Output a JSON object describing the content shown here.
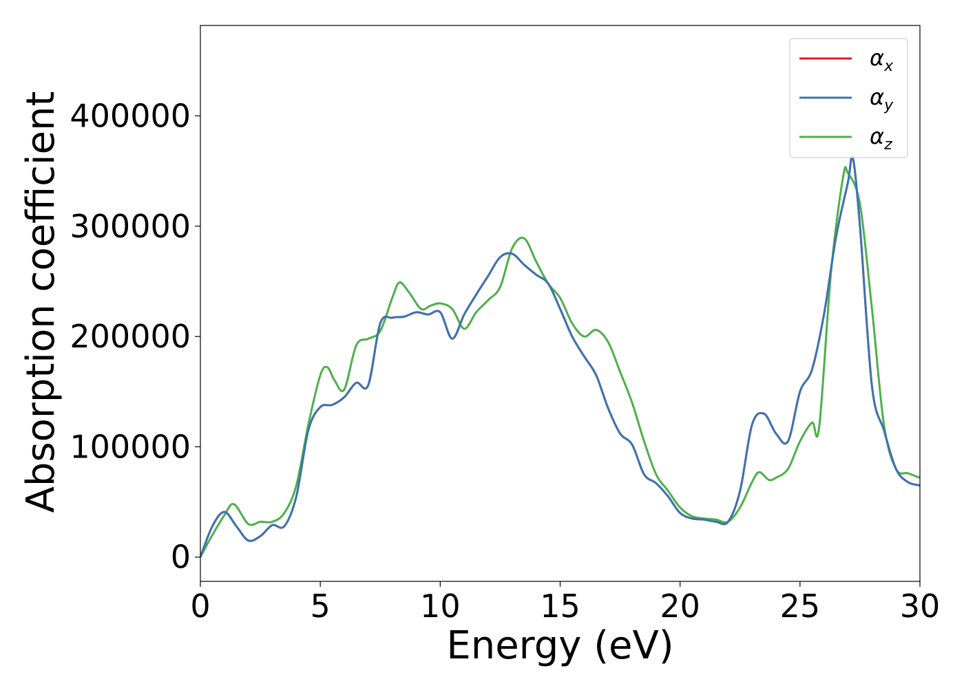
{
  "chart_data": {
    "type": "line",
    "xlabel": "Energy (eV)",
    "ylabel": "Absorption coefficient",
    "xlim": [
      0,
      30
    ],
    "ylim": [
      -22000,
      482000
    ],
    "xticks": [
      "0",
      "5",
      "10",
      "15",
      "20",
      "25",
      "30"
    ],
    "yticks": [
      "0",
      "100000",
      "200000",
      "300000",
      "400000"
    ],
    "grid": false,
    "legend": "top-right",
    "series": [
      {
        "name": "α",
        "subscript": "x",
        "color": "#e41a1c",
        "x": [
          0,
          0.5,
          1.0,
          1.5,
          2.0,
          2.5,
          3.0,
          3.5,
          4.0,
          4.5,
          5.0,
          5.5,
          6.0,
          6.5,
          7.0,
          7.5,
          8.0,
          8.5,
          9.0,
          9.5,
          10.0,
          10.5,
          11.0,
          11.5,
          12.0,
          12.5,
          13.0,
          13.5,
          14.0,
          14.5,
          15.0,
          15.5,
          16.0,
          16.5,
          17.0,
          17.5,
          18.0,
          18.5,
          19.0,
          19.5,
          20.0,
          20.5,
          21.0,
          21.5,
          22.0,
          22.5,
          23.0,
          23.5,
          24.0,
          24.5,
          25.0,
          25.5,
          26.0,
          26.5,
          27.0,
          27.2,
          27.5,
          28.0,
          28.5,
          29.0,
          29.5,
          30.0
        ],
        "y": [
          0,
          28000,
          41000,
          28000,
          15000,
          19000,
          29000,
          28000,
          55000,
          115000,
          136000,
          138000,
          145000,
          158000,
          156000,
          212000,
          217000,
          218000,
          222000,
          220000,
          222000,
          198000,
          220000,
          238000,
          255000,
          272000,
          275000,
          265000,
          256000,
          248000,
          225000,
          200000,
          182000,
          165000,
          135000,
          112000,
          102000,
          75000,
          67000,
          55000,
          40000,
          35000,
          34000,
          32000,
          32000,
          60000,
          120000,
          130000,
          112000,
          105000,
          150000,
          170000,
          220000,
          290000,
          340000,
          362000,
          300000,
          155000,
          115000,
          80000,
          68000,
          65000
        ]
      },
      {
        "name": "α",
        "subscript": "y",
        "color": "#3a74b4",
        "x": [
          0,
          0.5,
          1.0,
          1.5,
          2.0,
          2.5,
          3.0,
          3.5,
          4.0,
          4.5,
          5.0,
          5.5,
          6.0,
          6.5,
          7.0,
          7.5,
          8.0,
          8.5,
          9.0,
          9.5,
          10.0,
          10.5,
          11.0,
          11.5,
          12.0,
          12.5,
          13.0,
          13.5,
          14.0,
          14.5,
          15.0,
          15.5,
          16.0,
          16.5,
          17.0,
          17.5,
          18.0,
          18.5,
          19.0,
          19.5,
          20.0,
          20.5,
          21.0,
          21.5,
          22.0,
          22.5,
          23.0,
          23.5,
          24.0,
          24.5,
          25.0,
          25.5,
          26.0,
          26.5,
          27.0,
          27.2,
          27.5,
          28.0,
          28.5,
          29.0,
          29.5,
          30.0
        ],
        "y": [
          0,
          28000,
          41000,
          28000,
          15000,
          19000,
          29000,
          28000,
          55000,
          115000,
          136000,
          138000,
          145000,
          158000,
          156000,
          212000,
          217000,
          218000,
          222000,
          220000,
          222000,
          198000,
          220000,
          238000,
          255000,
          272000,
          275000,
          265000,
          256000,
          248000,
          225000,
          200000,
          182000,
          165000,
          135000,
          112000,
          102000,
          75000,
          67000,
          55000,
          40000,
          35000,
          34000,
          32000,
          32000,
          60000,
          120000,
          130000,
          112000,
          105000,
          150000,
          170000,
          220000,
          290000,
          340000,
          362000,
          300000,
          155000,
          115000,
          80000,
          68000,
          65000
        ]
      },
      {
        "name": "α",
        "subscript": "z",
        "color": "#4daf4a",
        "x": [
          0,
          0.5,
          1.0,
          1.4,
          2.0,
          2.5,
          3.0,
          3.5,
          4.0,
          4.5,
          5.0,
          5.3,
          5.6,
          6.0,
          6.5,
          7.0,
          7.5,
          8.0,
          8.3,
          8.7,
          9.2,
          9.6,
          10.0,
          10.5,
          11.0,
          11.5,
          12.0,
          12.5,
          13.0,
          13.5,
          14.0,
          14.5,
          15.0,
          15.5,
          16.0,
          16.5,
          17.0,
          17.5,
          18.0,
          18.5,
          19.0,
          19.5,
          20.0,
          20.5,
          21.0,
          21.5,
          22.0,
          22.5,
          23.0,
          23.3,
          23.7,
          24.0,
          24.5,
          25.0,
          25.5,
          25.8,
          26.3,
          26.8,
          27.0,
          27.5,
          28.0,
          28.5,
          29.0,
          29.5,
          30.0
        ],
        "y": [
          0,
          20000,
          38000,
          48000,
          30000,
          32000,
          32000,
          40000,
          65000,
          120000,
          165000,
          172000,
          160000,
          152000,
          192000,
          198000,
          205000,
          235000,
          249000,
          240000,
          225000,
          228000,
          230000,
          225000,
          207000,
          222000,
          233000,
          245000,
          280000,
          289000,
          268000,
          248000,
          235000,
          212000,
          200000,
          206000,
          195000,
          168000,
          140000,
          105000,
          75000,
          60000,
          45000,
          37000,
          35000,
          34000,
          32000,
          45000,
          68000,
          77000,
          70000,
          72000,
          80000,
          105000,
          122000,
          118000,
          260000,
          345000,
          348000,
          320000,
          225000,
          120000,
          80000,
          76000,
          72000
        ]
      }
    ]
  }
}
